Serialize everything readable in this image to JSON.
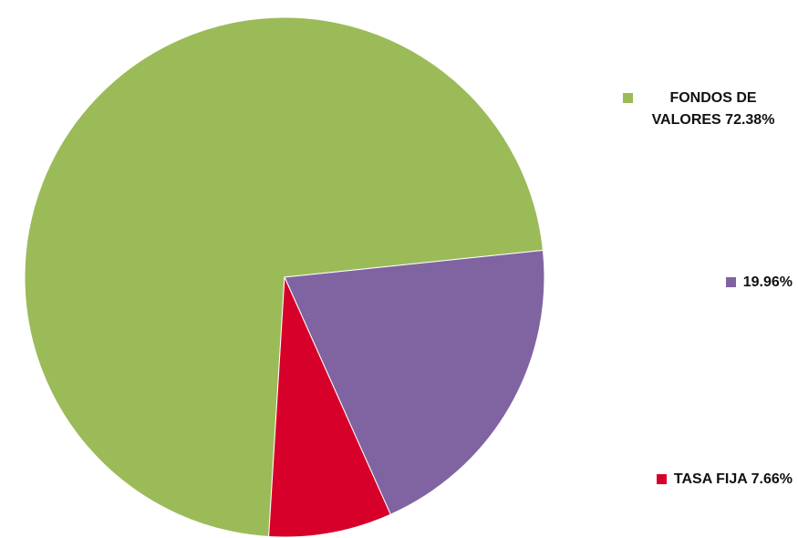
{
  "chart_data": {
    "type": "pie",
    "title": "",
    "slices": [
      {
        "label": "FONDOS DE VALORES",
        "value": 72.38,
        "display": "FONDOS DE VALORES 72.38%",
        "color": "#9bbb59"
      },
      {
        "label": "",
        "value": 19.96,
        "display": "19.96%",
        "color": "#8064a2"
      },
      {
        "label": "TASA FIJA",
        "value": 7.66,
        "display": "TASA FIJA 7.66%",
        "color": "#d7002a"
      }
    ],
    "legend_position": "right"
  }
}
